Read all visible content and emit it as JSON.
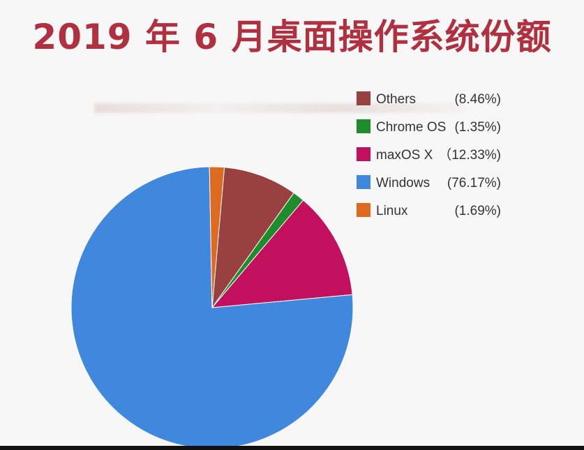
{
  "title": "2019 年 6 月桌面操作系统份额",
  "chart_data": {
    "type": "pie",
    "title": "2019 年 6 月桌面操作系统份额",
    "slices": [
      {
        "name": "Others",
        "value": 8.46,
        "display": "(8.46%)",
        "color": "#994040"
      },
      {
        "name": "Chrome OS",
        "value": 1.35,
        "display": "(1.35%)",
        "color": "#1e8c2a"
      },
      {
        "name": "maxOS X",
        "value": 12.33,
        "display": "（12.33%)",
        "color": "#c2105f"
      },
      {
        "name": "Windows",
        "value": 76.17,
        "display": "(76.17%)",
        "color": "#3f88dd"
      },
      {
        "name": "Linux",
        "value": 1.69,
        "display": "(1.69%)",
        "color": "#de6a20"
      }
    ],
    "legend_position": "top-right"
  }
}
